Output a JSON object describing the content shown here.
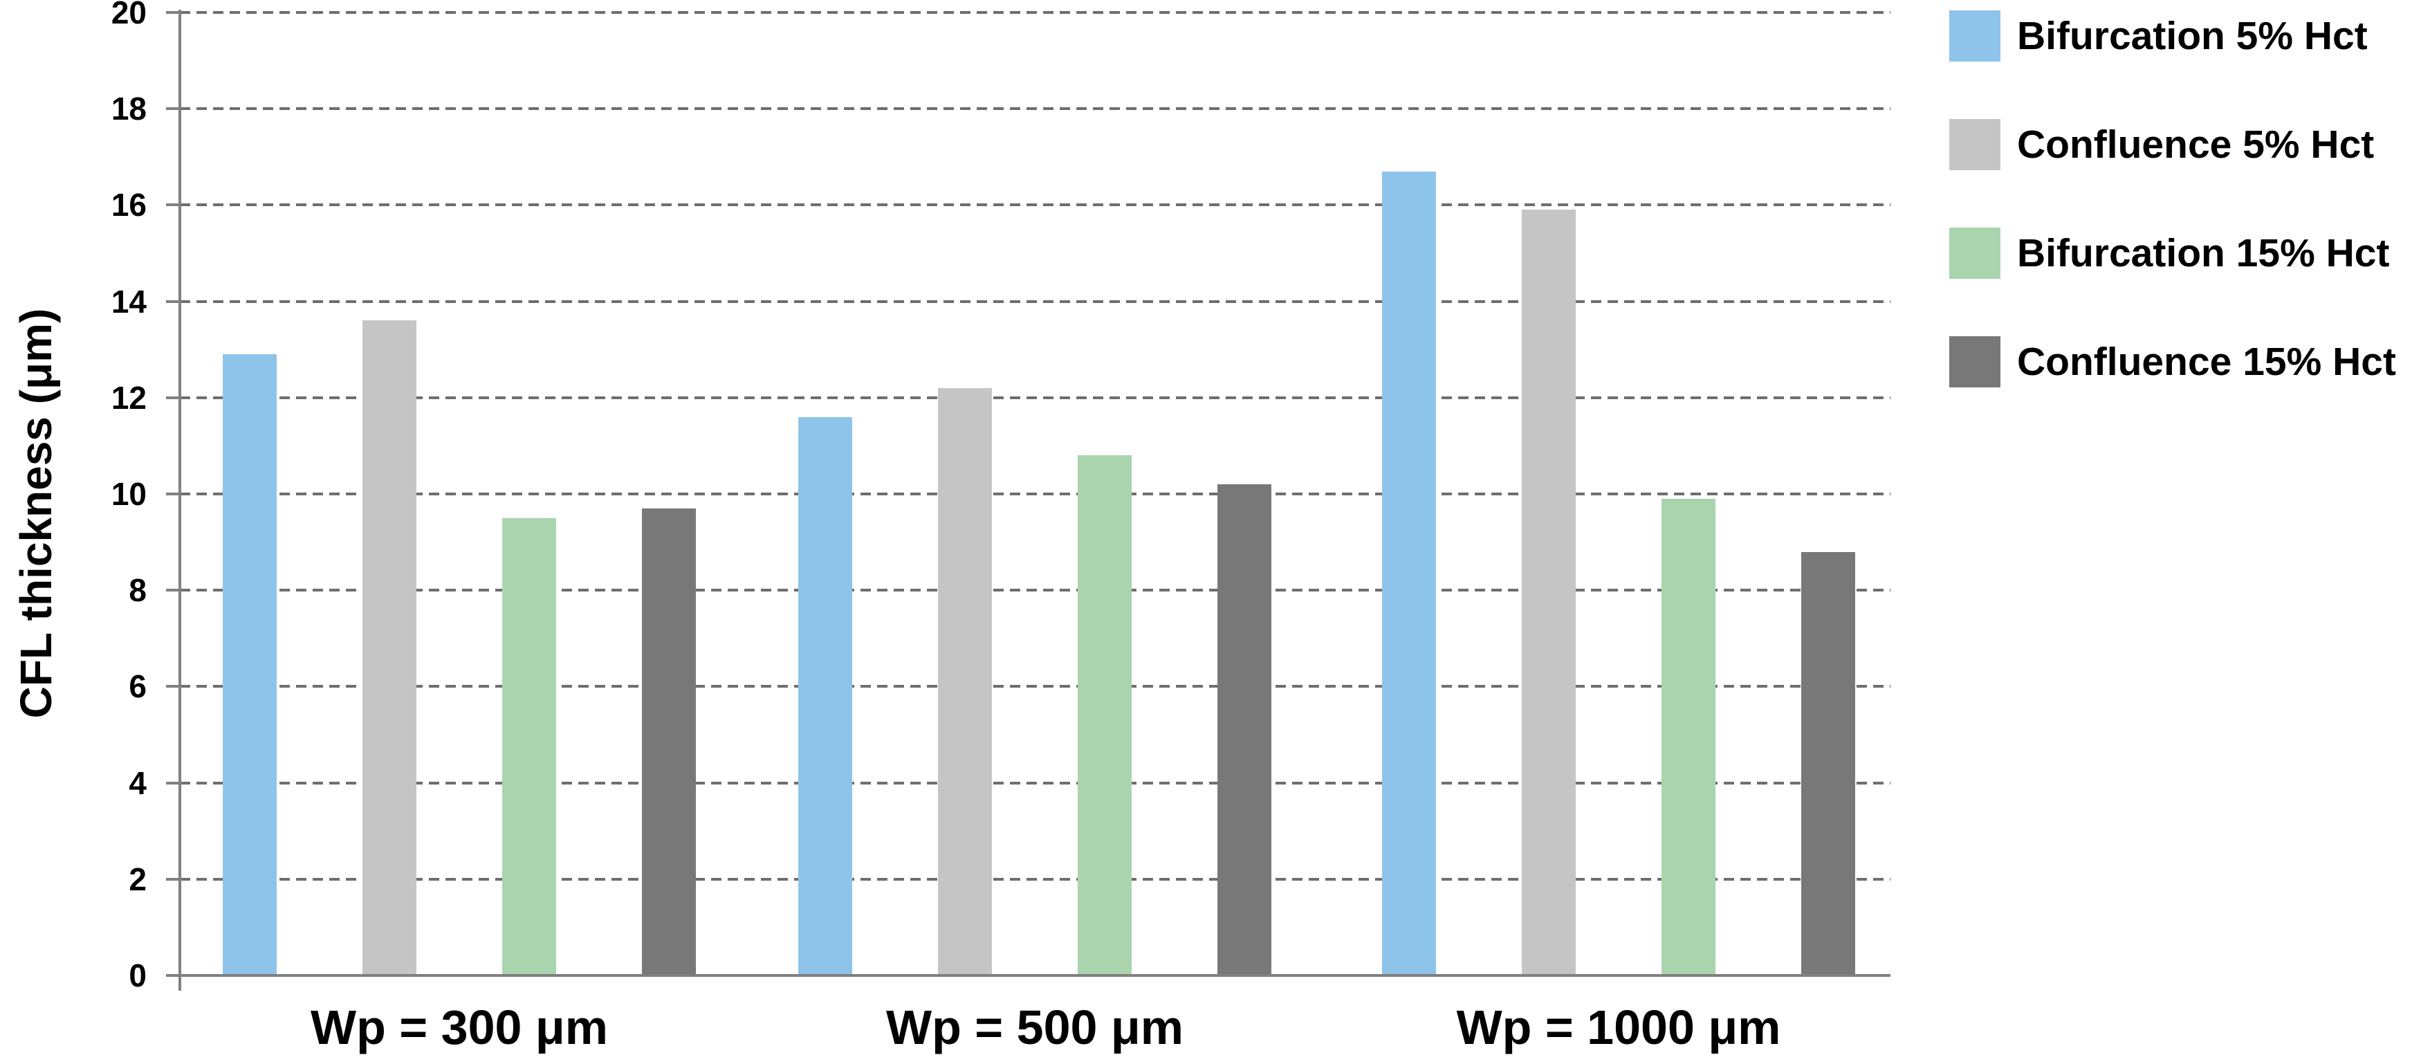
{
  "chart_data": {
    "type": "bar",
    "title": "",
    "xlabel": "",
    "ylabel": "CFL thickness (μm)",
    "ylim": [
      0,
      20
    ],
    "ytick_step": 2,
    "yticks": [
      0,
      2,
      4,
      6,
      8,
      10,
      12,
      14,
      16,
      18,
      20
    ],
    "grid": "horizontal-dashed",
    "legend_position": "right-outside",
    "categories": [
      "Wp = 300 μm",
      "Wp = 500 μm",
      "Wp = 1000 μm"
    ],
    "series": [
      {
        "name": "Bifurcation 5% Hct",
        "color": "#8FC4EA",
        "values": [
          12.9,
          11.6,
          16.7
        ]
      },
      {
        "name": "Confluence 5% Hct",
        "color": "#C5C5C5",
        "values": [
          13.6,
          12.2,
          15.9
        ]
      },
      {
        "name": "Bifurcation 15% Hct",
        "color": "#AAD4AE",
        "values": [
          9.5,
          10.8,
          9.9
        ]
      },
      {
        "name": "Confluence 15% Hct",
        "color": "#787878",
        "values": [
          9.7,
          10.2,
          8.8
        ]
      }
    ],
    "colors": {
      "axis": "#808080",
      "gridline": "#6E6E6E",
      "text": "#000000",
      "background": "#FFFFFF"
    }
  }
}
